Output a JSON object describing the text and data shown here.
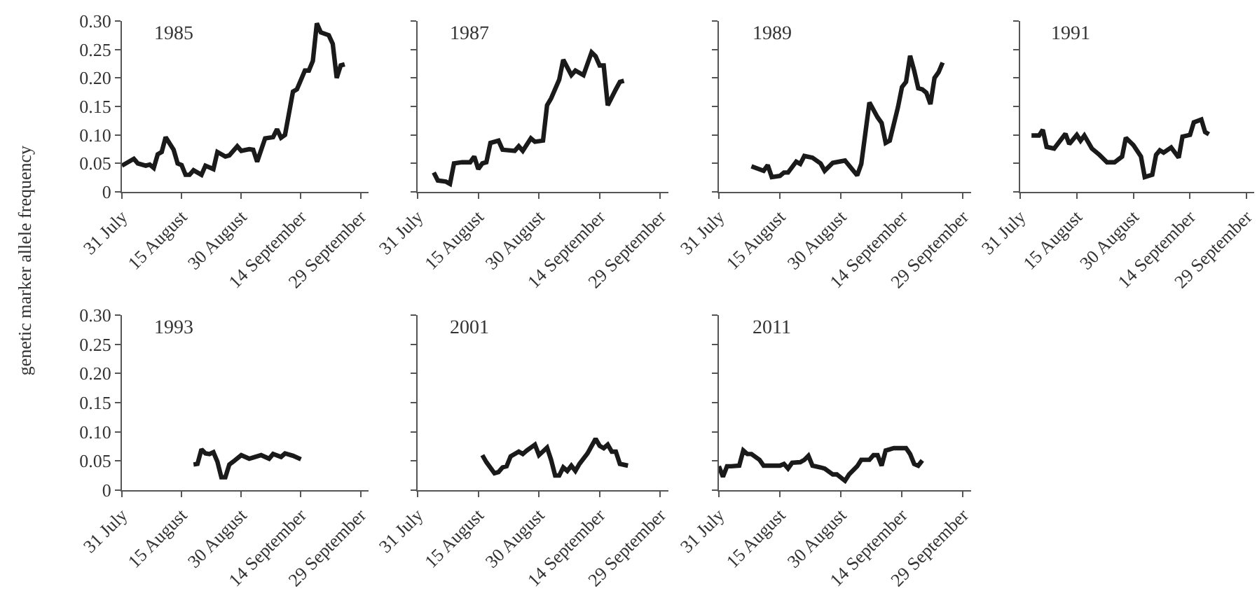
{
  "chart_data": [
    {
      "type": "line",
      "title": "1985",
      "ylabel": "genetic marker allele frequency",
      "color": "#1a1a1a",
      "xlim": [
        "--07-31",
        "--10-01"
      ],
      "ylim": [
        0,
        0.3
      ],
      "yticks": [
        {
          "value": 0,
          "label": "0"
        },
        {
          "value": 0.05,
          "label": "0.05"
        },
        {
          "value": 0.1,
          "label": "0.10"
        },
        {
          "value": 0.15,
          "label": "0.15"
        },
        {
          "value": 0.2,
          "label": "0.20"
        },
        {
          "value": 0.25,
          "label": "0.25"
        },
        {
          "value": 0.3,
          "label": "0.30"
        }
      ],
      "xticks": [
        {
          "value": "--07-31",
          "label": "31 July"
        },
        {
          "value": "--08-15",
          "label": "15 August"
        },
        {
          "value": "--08-30",
          "label": "30 August"
        },
        {
          "value": "--09-14",
          "label": "14 September"
        },
        {
          "value": "--09-29",
          "label": "29 September"
        }
      ],
      "x": [
        "--07-31",
        "--08-03",
        "--08-04",
        "--08-06",
        "--08-07",
        "--08-08",
        "--08-09",
        "--08-10",
        "--08-11",
        "--08-13",
        "--08-14",
        "--08-15",
        "--08-16",
        "--08-17",
        "--08-18",
        "--08-20",
        "--08-21",
        "--08-23",
        "--08-24",
        "--08-26",
        "--08-27",
        "--08-29",
        "--08-30",
        "--09-01",
        "--09-02",
        "--09-03",
        "--09-05",
        "--09-07",
        "--09-08",
        "--09-09",
        "--09-10",
        "--09-12",
        "--09-13",
        "--09-15",
        "--09-16",
        "--09-17",
        "--09-18",
        "--09-19",
        "--09-21",
        "--09-22",
        "--09-23",
        "--09-24",
        "--09-25"
      ],
      "values": [
        0.046,
        0.058,
        0.05,
        0.046,
        0.048,
        0.042,
        0.066,
        0.07,
        0.096,
        0.074,
        0.05,
        0.047,
        0.03,
        0.03,
        0.038,
        0.03,
        0.046,
        0.04,
        0.07,
        0.062,
        0.064,
        0.08,
        0.072,
        0.075,
        0.074,
        0.053,
        0.094,
        0.096,
        0.11,
        0.095,
        0.1,
        0.176,
        0.18,
        0.213,
        0.213,
        0.23,
        0.296,
        0.28,
        0.275,
        0.26,
        0.2,
        0.222,
        0.224
      ]
    },
    {
      "type": "line",
      "title": "1987",
      "tick_labels": "x",
      "color": "#1a1a1a",
      "xlim": [
        "--07-31",
        "--10-01"
      ],
      "ylim": [
        0,
        0.3
      ],
      "yticks": [
        {
          "value": 0,
          "label": "0"
        },
        {
          "value": 0.05,
          "label": "0.05"
        },
        {
          "value": 0.1,
          "label": "0.10"
        },
        {
          "value": 0.15,
          "label": "0.15"
        },
        {
          "value": 0.2,
          "label": "0.20"
        },
        {
          "value": 0.25,
          "label": "0.25"
        },
        {
          "value": 0.3,
          "label": "0.30"
        }
      ],
      "xticks": [
        {
          "value": "--07-31",
          "label": "31 July"
        },
        {
          "value": "--08-15",
          "label": "15 August"
        },
        {
          "value": "--08-30",
          "label": "30 August"
        },
        {
          "value": "--09-14",
          "label": "14 September"
        },
        {
          "value": "--09-29",
          "label": "29 September"
        }
      ],
      "x": [
        "--08-04",
        "--08-05",
        "--08-07",
        "--08-08",
        "--08-09",
        "--08-11",
        "--08-13",
        "--08-14",
        "--08-15",
        "--08-16",
        "--08-17",
        "--08-18",
        "--08-20",
        "--08-21",
        "--08-24",
        "--08-25",
        "--08-26",
        "--08-28",
        "--08-29",
        "--08-31",
        "--09-01",
        "--09-02",
        "--09-04",
        "--09-05",
        "--09-07",
        "--09-08",
        "--09-10",
        "--09-12",
        "--09-13",
        "--09-14",
        "--09-15",
        "--09-16",
        "--09-18",
        "--09-19",
        "--09-20"
      ],
      "values": [
        0.034,
        0.02,
        0.018,
        0.014,
        0.05,
        0.052,
        0.052,
        0.062,
        0.04,
        0.05,
        0.052,
        0.086,
        0.09,
        0.074,
        0.072,
        0.08,
        0.072,
        0.094,
        0.088,
        0.09,
        0.152,
        0.164,
        0.197,
        0.232,
        0.205,
        0.213,
        0.205,
        0.245,
        0.238,
        0.222,
        0.222,
        0.152,
        0.18,
        0.193,
        0.195
      ]
    },
    {
      "type": "line",
      "title": "1989",
      "tick_labels": "x",
      "color": "#1a1a1a",
      "xlim": [
        "--07-31",
        "--10-01"
      ],
      "ylim": [
        0,
        0.3
      ],
      "yticks": [
        {
          "value": 0,
          "label": "0"
        },
        {
          "value": 0.05,
          "label": "0.05"
        },
        {
          "value": 0.1,
          "label": "0.10"
        },
        {
          "value": 0.15,
          "label": "0.15"
        },
        {
          "value": 0.2,
          "label": "0.20"
        },
        {
          "value": 0.25,
          "label": "0.25"
        },
        {
          "value": 0.3,
          "label": "0.30"
        }
      ],
      "xticks": [
        {
          "value": "--07-31",
          "label": "31 July"
        },
        {
          "value": "--08-15",
          "label": "15 August"
        },
        {
          "value": "--08-30",
          "label": "30 August"
        },
        {
          "value": "--09-14",
          "label": "14 September"
        },
        {
          "value": "--09-29",
          "label": "29 September"
        }
      ],
      "x": [
        "--08-08",
        "--08-11",
        "--08-12",
        "--08-13",
        "--08-15",
        "--08-16",
        "--08-17",
        "--08-19",
        "--08-20",
        "--08-21",
        "--08-23",
        "--08-25",
        "--08-26",
        "--08-28",
        "--08-31",
        "--09-03",
        "--09-04",
        "--09-06",
        "--09-08",
        "--09-09",
        "--09-10",
        "--09-11",
        "--09-13",
        "--09-14",
        "--09-15",
        "--09-16",
        "--09-17",
        "--09-18",
        "--09-19",
        "--09-20",
        "--09-21",
        "--09-22",
        "--09-23",
        "--09-24"
      ],
      "values": [
        0.045,
        0.037,
        0.047,
        0.026,
        0.028,
        0.034,
        0.034,
        0.053,
        0.049,
        0.063,
        0.06,
        0.05,
        0.037,
        0.051,
        0.055,
        0.029,
        0.049,
        0.157,
        0.131,
        0.121,
        0.086,
        0.09,
        0.148,
        0.184,
        0.193,
        0.239,
        0.213,
        0.182,
        0.18,
        0.174,
        0.154,
        0.2,
        0.21,
        0.227
      ]
    },
    {
      "type": "line",
      "title": "1991",
      "tick_labels": "x",
      "color": "#1a1a1a",
      "xlim": [
        "--07-31",
        "--10-01"
      ],
      "ylim": [
        0,
        0.3
      ],
      "yticks": [
        {
          "value": 0,
          "label": "0"
        },
        {
          "value": 0.05,
          "label": "0.05"
        },
        {
          "value": 0.1,
          "label": "0.10"
        },
        {
          "value": 0.15,
          "label": "0.15"
        },
        {
          "value": 0.2,
          "label": "0.20"
        },
        {
          "value": 0.25,
          "label": "0.25"
        },
        {
          "value": 0.3,
          "label": "0.30"
        }
      ],
      "xticks": [
        {
          "value": "--07-31",
          "label": "31 July"
        },
        {
          "value": "--08-15",
          "label": "15 August"
        },
        {
          "value": "--08-30",
          "label": "30 August"
        },
        {
          "value": "--09-14",
          "label": "14 September"
        },
        {
          "value": "--09-29",
          "label": "29 September"
        }
      ],
      "x": [
        "--08-03",
        "--08-05",
        "--08-06",
        "--08-07",
        "--08-09",
        "--08-12",
        "--08-13",
        "--08-15",
        "--08-16",
        "--08-17",
        "--08-19",
        "--08-21",
        "--08-23",
        "--08-25",
        "--08-27",
        "--08-28",
        "--08-30",
        "--09-01",
        "--09-02",
        "--09-04",
        "--09-05",
        "--09-06",
        "--09-07",
        "--09-09",
        "--09-10",
        "--09-11",
        "--09-12",
        "--09-14",
        "--09-15",
        "--09-17",
        "--09-18",
        "--09-19"
      ],
      "values": [
        0.099,
        0.099,
        0.109,
        0.079,
        0.076,
        0.102,
        0.084,
        0.1,
        0.09,
        0.099,
        0.076,
        0.065,
        0.052,
        0.052,
        0.062,
        0.095,
        0.082,
        0.062,
        0.026,
        0.03,
        0.065,
        0.073,
        0.069,
        0.078,
        0.069,
        0.06,
        0.097,
        0.1,
        0.122,
        0.127,
        0.105,
        0.101
      ]
    },
    {
      "type": "line",
      "title": "1993",
      "color": "#1a1a1a",
      "xlim": [
        "--07-31",
        "--10-01"
      ],
      "ylim": [
        0,
        0.3
      ],
      "yticks": [
        {
          "value": 0,
          "label": "0"
        },
        {
          "value": 0.05,
          "label": "0.05"
        },
        {
          "value": 0.1,
          "label": "0.10"
        },
        {
          "value": 0.15,
          "label": "0.15"
        },
        {
          "value": 0.2,
          "label": "0.20"
        },
        {
          "value": 0.25,
          "label": "0.25"
        },
        {
          "value": 0.3,
          "label": "0.30"
        }
      ],
      "xticks": [
        {
          "value": "--07-31",
          "label": "31 July"
        },
        {
          "value": "--08-15",
          "label": "15 August"
        },
        {
          "value": "--08-30",
          "label": "30 August"
        },
        {
          "value": "--09-14",
          "label": "14 September"
        },
        {
          "value": "--09-29",
          "label": "29 September"
        }
      ],
      "x": [
        "--08-18",
        "--08-19",
        "--08-20",
        "--08-21",
        "--08-22",
        "--08-23",
        "--08-24",
        "--08-25",
        "--08-26",
        "--08-27",
        "--08-28",
        "--08-30",
        "--09-01",
        "--09-02",
        "--09-04",
        "--09-06",
        "--09-07",
        "--09-09",
        "--09-10",
        "--09-12",
        "--09-14"
      ],
      "values": [
        0.044,
        0.045,
        0.07,
        0.063,
        0.062,
        0.065,
        0.049,
        0.022,
        0.022,
        0.044,
        0.049,
        0.06,
        0.054,
        0.056,
        0.06,
        0.054,
        0.062,
        0.057,
        0.063,
        0.059,
        0.053
      ]
    },
    {
      "type": "line",
      "title": "2001",
      "tick_labels": "x",
      "color": "#1a1a1a",
      "xlim": [
        "--07-31",
        "--10-01"
      ],
      "ylim": [
        0,
        0.3
      ],
      "yticks": [
        {
          "value": 0,
          "label": "0"
        },
        {
          "value": 0.05,
          "label": "0.05"
        },
        {
          "value": 0.1,
          "label": "0.10"
        },
        {
          "value": 0.15,
          "label": "0.15"
        },
        {
          "value": 0.2,
          "label": "0.20"
        },
        {
          "value": 0.25,
          "label": "0.25"
        },
        {
          "value": 0.3,
          "label": "0.30"
        }
      ],
      "xticks": [
        {
          "value": "--07-31",
          "label": "31 July"
        },
        {
          "value": "--08-15",
          "label": "15 August"
        },
        {
          "value": "--08-30",
          "label": "30 August"
        },
        {
          "value": "--09-14",
          "label": "14 September"
        },
        {
          "value": "--09-29",
          "label": "29 September"
        }
      ],
      "x": [
        "--08-16",
        "--08-17",
        "--08-19",
        "--08-20",
        "--08-21",
        "--08-22",
        "--08-23",
        "--08-25",
        "--08-26",
        "--08-27",
        "--08-29",
        "--08-30",
        "--09-01",
        "--09-02",
        "--09-03",
        "--09-04",
        "--09-05",
        "--09-06",
        "--09-07",
        "--09-08",
        "--09-09",
        "--09-11",
        "--09-13",
        "--09-14",
        "--09-15",
        "--09-16",
        "--09-17",
        "--09-18",
        "--09-19",
        "--09-21"
      ],
      "values": [
        0.06,
        0.048,
        0.029,
        0.031,
        0.039,
        0.041,
        0.058,
        0.066,
        0.062,
        0.068,
        0.078,
        0.06,
        0.073,
        0.052,
        0.025,
        0.025,
        0.039,
        0.033,
        0.042,
        0.033,
        0.045,
        0.063,
        0.088,
        0.076,
        0.072,
        0.078,
        0.066,
        0.066,
        0.045,
        0.042
      ]
    },
    {
      "type": "line",
      "title": "2011",
      "tick_labels": "x",
      "color": "#1a1a1a",
      "xlim": [
        "--07-31",
        "--10-01"
      ],
      "ylim": [
        0,
        0.3
      ],
      "yticks": [
        {
          "value": 0,
          "label": "0"
        },
        {
          "value": 0.05,
          "label": "0.05"
        },
        {
          "value": 0.1,
          "label": "0.10"
        },
        {
          "value": 0.15,
          "label": "0.15"
        },
        {
          "value": 0.2,
          "label": "0.20"
        },
        {
          "value": 0.25,
          "label": "0.25"
        },
        {
          "value": 0.3,
          "label": "0.30"
        }
      ],
      "xticks": [
        {
          "value": "--07-31",
          "label": "31 July"
        },
        {
          "value": "--08-15",
          "label": "15 August"
        },
        {
          "value": "--08-30",
          "label": "30 August"
        },
        {
          "value": "--09-14",
          "label": "14 September"
        },
        {
          "value": "--09-29",
          "label": "29 September"
        }
      ],
      "x": [
        "--07-31",
        "--08-01",
        "--08-02",
        "--08-03",
        "--08-05",
        "--08-06",
        "--08-07",
        "--08-08",
        "--08-10",
        "--08-11",
        "--08-13",
        "--08-15",
        "--08-16",
        "--08-17",
        "--08-18",
        "--08-20",
        "--08-21",
        "--08-22",
        "--08-23",
        "--08-25",
        "--08-26",
        "--08-28",
        "--08-29",
        "--08-31",
        "--09-01",
        "--09-03",
        "--09-04",
        "--09-06",
        "--09-07",
        "--09-08",
        "--09-09",
        "--09-10",
        "--09-12",
        "--09-15",
        "--09-16",
        "--09-17",
        "--09-18",
        "--09-19"
      ],
      "values": [
        0.041,
        0.023,
        0.041,
        0.041,
        0.042,
        0.068,
        0.062,
        0.062,
        0.052,
        0.042,
        0.042,
        0.042,
        0.045,
        0.037,
        0.047,
        0.048,
        0.052,
        0.059,
        0.042,
        0.039,
        0.037,
        0.027,
        0.027,
        0.016,
        0.027,
        0.041,
        0.052,
        0.052,
        0.06,
        0.06,
        0.042,
        0.068,
        0.072,
        0.072,
        0.062,
        0.045,
        0.042,
        0.051
      ]
    }
  ]
}
